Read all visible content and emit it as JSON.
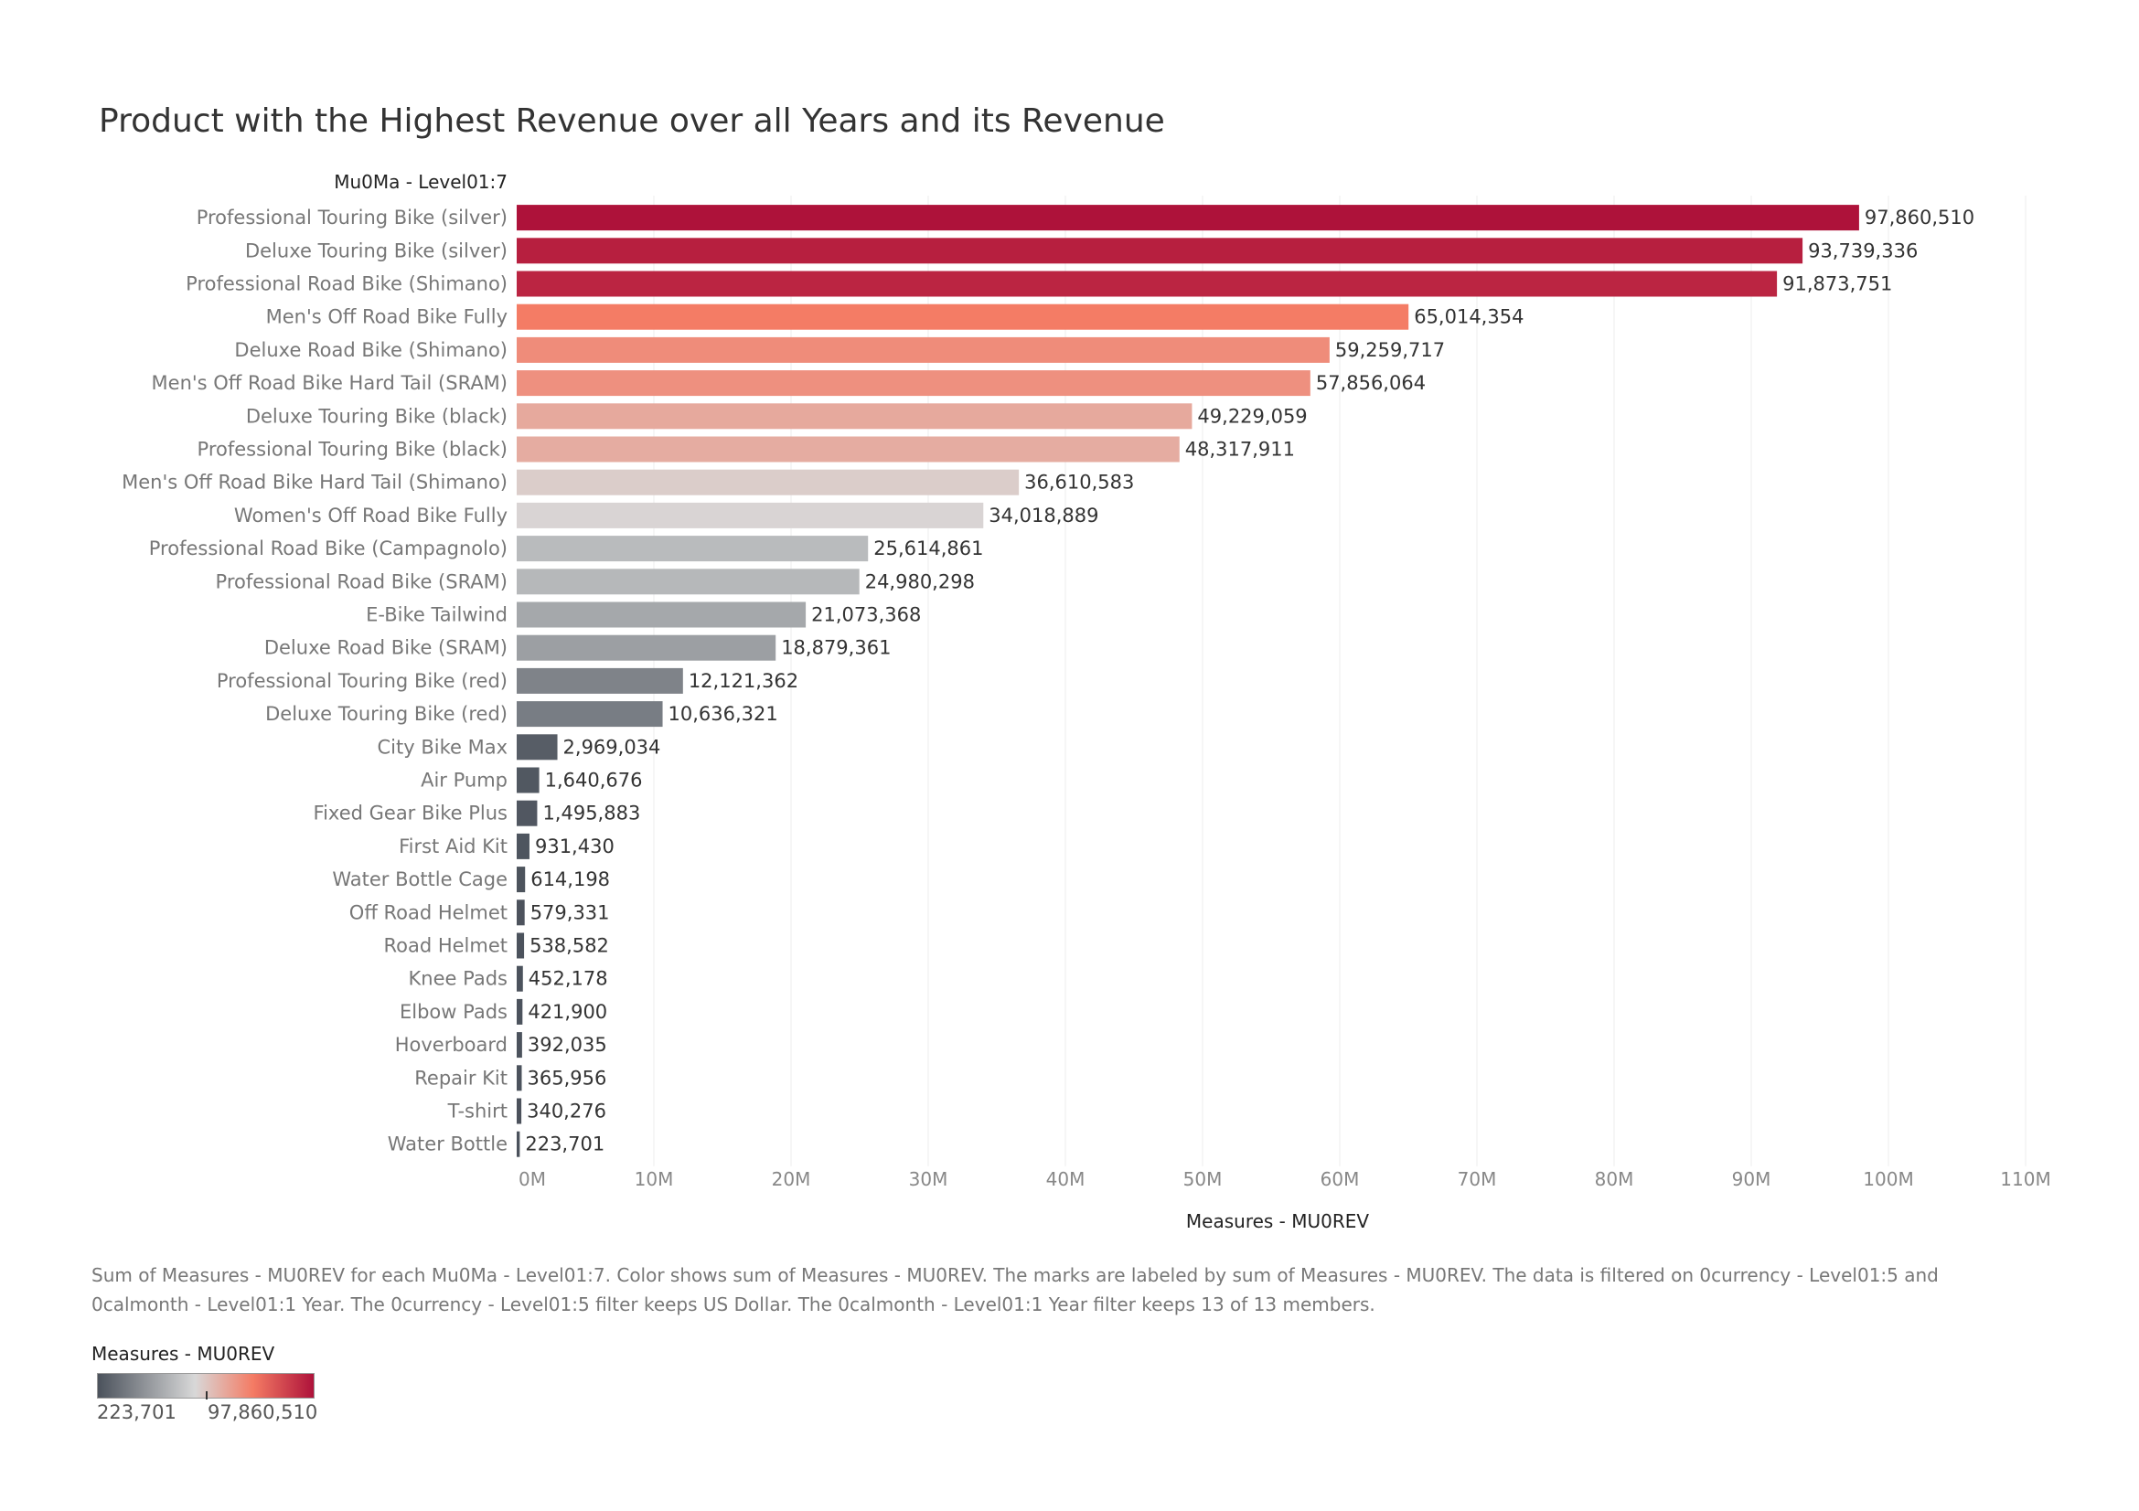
{
  "chart_data": {
    "type": "bar",
    "orientation": "horizontal",
    "title": "Product with the Highest Revenue over all Years and its Revenue",
    "row_header": "Mu0Ma - Level01:7",
    "xlabel": "Measures - MU0REV",
    "xlim": [
      0,
      110000000
    ],
    "x_ticks": [
      "0M",
      "10M",
      "20M",
      "30M",
      "40M",
      "50M",
      "60M",
      "70M",
      "80M",
      "90M",
      "100M",
      "110M"
    ],
    "grid": "vertical",
    "categories": [
      "Professional Touring Bike (silver)",
      "Deluxe Touring Bike (silver)",
      "Professional Road Bike (Shimano)",
      "Men's Off Road Bike Fully",
      "Deluxe Road Bike (Shimano)",
      "Men's Off Road Bike Hard Tail (SRAM)",
      "Deluxe Touring Bike (black)",
      "Professional Touring Bike (black)",
      "Men's Off Road Bike Hard Tail (Shimano)",
      "Women's Off Road Bike Fully",
      "Professional Road Bike (Campagnolo)",
      "Professional Road Bike (SRAM)",
      "E-Bike Tailwind",
      "Deluxe Road Bike (SRAM)",
      "Professional Touring Bike (red)",
      "Deluxe Touring Bike (red)",
      "City Bike Max",
      "Air Pump",
      "Fixed Gear Bike Plus",
      "First Aid Kit",
      "Water Bottle Cage",
      "Off Road Helmet",
      "Road Helmet",
      "Knee Pads",
      "Elbow Pads",
      "Hoverboard",
      "Repair Kit",
      "T-shirt",
      "Water Bottle"
    ],
    "values": [
      97860510,
      93739336,
      91873751,
      65014354,
      59259717,
      57856064,
      49229059,
      48317911,
      36610583,
      34018889,
      25614861,
      24980298,
      21073368,
      18879361,
      12121362,
      10636321,
      2969034,
      1640676,
      1495883,
      931430,
      614198,
      579331,
      538582,
      452178,
      421900,
      392035,
      365956,
      340276,
      223701
    ],
    "data_labels": [
      "97,860,510",
      "93,739,336",
      "91,873,751",
      "65,014,354",
      "59,259,717",
      "57,856,064",
      "49,229,059",
      "48,317,911",
      "36,610,583",
      "34,018,889",
      "25,614,861",
      "24,980,298",
      "21,073,368",
      "18,879,361",
      "12,121,362",
      "10,636,321",
      "2,969,034",
      "1,640,676",
      "1,495,883",
      "931,430",
      "614,198",
      "579,331",
      "538,582",
      "452,178",
      "421,900",
      "392,035",
      "365,956",
      "340,276",
      "223,701"
    ],
    "color_scale": {
      "title": "Measures - MU0REV",
      "min_label": "223,701",
      "max_label": "97,860,510",
      "colors": [
        "#4b525c",
        "#d8d8d8",
        "#f47b64",
        "#ae123a"
      ]
    }
  },
  "caption": "Sum of Measures - MU0REV for each Mu0Ma - Level01:7.  Color shows sum of Measures - MU0REV.  The marks are labeled by sum of Measures - MU0REV. The data is filtered on 0currency - Level01:5 and 0calmonth - Level01:1 Year. The 0currency - Level01:5 filter keeps US Dollar. The 0calmonth - Level01:1 Year filter keeps 13 of 13 members."
}
